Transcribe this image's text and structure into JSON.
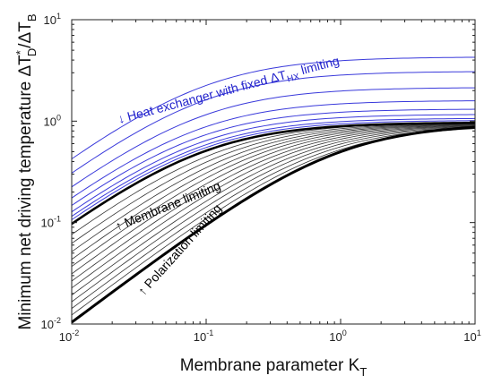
{
  "chart_data": {
    "type": "line",
    "title": "",
    "xlabel_main": "Membrane parameter K",
    "xlabel_sub": "T",
    "ylabel": {
      "prefix": "Minimum net driving temperature ΔT",
      "sup": "*",
      "sub1": "D",
      "mid": "/ΔT",
      "sub2": "B"
    },
    "xscale": "log",
    "yscale": "log",
    "xlim": [
      0.01,
      10
    ],
    "ylim": [
      0.01,
      10
    ],
    "x_ticks": [
      {
        "value": 0.01,
        "base": "10",
        "exp": "-2"
      },
      {
        "value": 0.1,
        "base": "10",
        "exp": "-1"
      },
      {
        "value": 1,
        "base": "10",
        "exp": "0"
      },
      {
        "value": 10,
        "base": "10",
        "exp": "1"
      }
    ],
    "y_ticks": [
      {
        "value": 0.01,
        "base": "10",
        "exp": "-2"
      },
      {
        "value": 0.1,
        "base": "10",
        "exp": "-1"
      },
      {
        "value": 1,
        "base": "10",
        "exp": "0"
      },
      {
        "value": 10,
        "base": "10",
        "exp": "1"
      }
    ],
    "grid": false,
    "colors": {
      "blue": "#3a3adb",
      "black": "#000000",
      "thin_black": "#333333",
      "annotation_blue": "#2222cc"
    },
    "series_groups": {
      "heat_exchanger_limiting": {
        "color": "blue",
        "plateau_values": [
          4.3,
          3.1,
          2.15,
          1.6,
          1.32,
          1.17,
          1.07,
          1.02
        ],
        "y_at_xmin": [
          0.47,
          0.34,
          0.25,
          0.195,
          0.165,
          0.142,
          0.128,
          0.118
        ]
      },
      "membrane_boundary": {
        "color": "black",
        "y_at_xmin": 0.107,
        "plateau": 0.97
      },
      "membrane_limiting": {
        "color": "thin_black",
        "y_at_xmin": [
          0.082,
          0.066,
          0.054,
          0.045,
          0.038,
          0.032,
          0.027,
          0.023,
          0.0195,
          0.0167,
          0.0143,
          0.0123
        ]
      },
      "polarization_limiting": {
        "color": "black",
        "y_at_xmin": 0.0104,
        "plateau": 0.95
      }
    },
    "annotations": {
      "heat_exchanger": {
        "prefix": "↓ Heat exchanger with fixed ΔT",
        "sub": "HX",
        "suffix": " limiting"
      },
      "membrane": "↑ Membrane limiting",
      "polarization": "↑ Polarization limiting"
    }
  }
}
